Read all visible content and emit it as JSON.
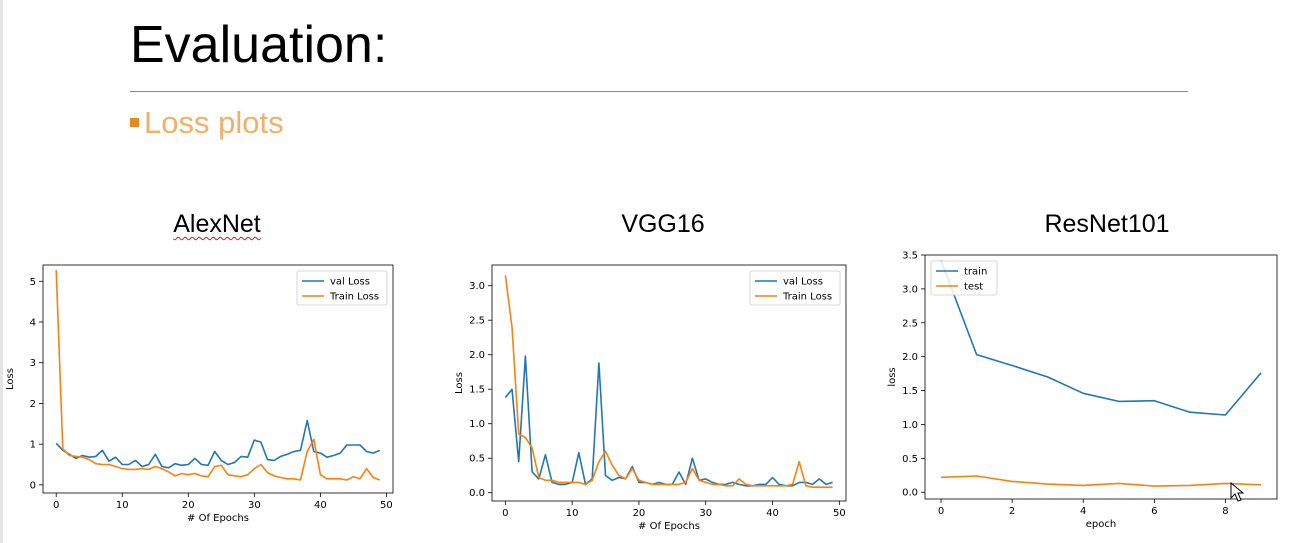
{
  "slide": {
    "title": "Evaluation:",
    "subtitle": "Loss plots",
    "bullet_color": "#e8891f",
    "subtitle_color": "#f0b06a"
  },
  "chart_titles": [
    "AlexNet",
    "VGG16",
    "ResNet101"
  ],
  "chart_data": [
    {
      "type": "line",
      "xlabel": "# Of Epochs",
      "ylabel": "Loss",
      "xlim": [
        -2,
        51
      ],
      "ylim": [
        -0.2,
        5.4
      ],
      "xticks": [
        0,
        10,
        20,
        30,
        40,
        50
      ],
      "yticks": [
        0,
        1,
        2,
        3,
        4,
        5
      ],
      "legend_position": "top-right",
      "series": [
        {
          "name": "val Loss",
          "color": "#1f77b4",
          "values": [
            1.02,
            0.85,
            0.75,
            0.65,
            0.72,
            0.68,
            0.7,
            0.85,
            0.58,
            0.68,
            0.5,
            0.5,
            0.6,
            0.45,
            0.5,
            0.75,
            0.45,
            0.42,
            0.52,
            0.48,
            0.5,
            0.65,
            0.5,
            0.48,
            0.82,
            0.6,
            0.5,
            0.55,
            0.7,
            0.68,
            1.1,
            1.05,
            0.62,
            0.6,
            0.7,
            0.75,
            0.82,
            0.85,
            1.58,
            0.82,
            0.78,
            0.68,
            0.72,
            0.78,
            0.98,
            0.98,
            0.98,
            0.82,
            0.78,
            0.85
          ]
        },
        {
          "name": "Train Loss",
          "color": "#ff7f0e",
          "values": [
            5.28,
            0.88,
            0.72,
            0.7,
            0.68,
            0.62,
            0.52,
            0.5,
            0.5,
            0.45,
            0.4,
            0.38,
            0.38,
            0.4,
            0.38,
            0.45,
            0.4,
            0.32,
            0.22,
            0.28,
            0.25,
            0.28,
            0.22,
            0.2,
            0.45,
            0.48,
            0.25,
            0.22,
            0.2,
            0.25,
            0.4,
            0.5,
            0.3,
            0.22,
            0.18,
            0.15,
            0.15,
            0.12,
            0.82,
            1.12,
            0.25,
            0.15,
            0.15,
            0.15,
            0.12,
            0.2,
            0.15,
            0.4,
            0.18,
            0.12
          ]
        }
      ]
    },
    {
      "type": "line",
      "xlabel": "# Of Epochs",
      "ylabel": "Loss",
      "xlim": [
        -2,
        51
      ],
      "ylim": [
        -0.12,
        3.3
      ],
      "xticks": [
        0,
        10,
        20,
        30,
        40,
        50
      ],
      "yticks": [
        0.0,
        0.5,
        1.0,
        1.5,
        2.0,
        2.5,
        3.0
      ],
      "legend_position": "top-right",
      "series": [
        {
          "name": "val Loss",
          "color": "#1f77b4",
          "values": [
            1.38,
            1.5,
            0.45,
            1.98,
            0.3,
            0.2,
            0.55,
            0.15,
            0.12,
            0.12,
            0.15,
            0.58,
            0.12,
            0.2,
            1.88,
            0.25,
            0.18,
            0.22,
            0.2,
            0.38,
            0.15,
            0.15,
            0.12,
            0.15,
            0.12,
            0.12,
            0.3,
            0.12,
            0.5,
            0.18,
            0.2,
            0.15,
            0.12,
            0.12,
            0.15,
            0.12,
            0.1,
            0.1,
            0.12,
            0.12,
            0.22,
            0.12,
            0.1,
            0.1,
            0.15,
            0.15,
            0.12,
            0.2,
            0.12,
            0.15
          ]
        },
        {
          "name": "Train Loss",
          "color": "#ff7f0e",
          "values": [
            3.15,
            2.4,
            0.85,
            0.8,
            0.65,
            0.22,
            0.18,
            0.18,
            0.15,
            0.15,
            0.15,
            0.15,
            0.12,
            0.18,
            0.45,
            0.6,
            0.4,
            0.25,
            0.2,
            0.35,
            0.18,
            0.15,
            0.12,
            0.12,
            0.12,
            0.12,
            0.12,
            0.15,
            0.35,
            0.18,
            0.15,
            0.12,
            0.12,
            0.1,
            0.1,
            0.2,
            0.12,
            0.1,
            0.1,
            0.1,
            0.1,
            0.1,
            0.1,
            0.12,
            0.45,
            0.1,
            0.08,
            0.08,
            0.08,
            0.08
          ]
        }
      ]
    },
    {
      "type": "line",
      "xlabel": "epoch",
      "ylabel": "loss",
      "xlim": [
        -0.45,
        9.45
      ],
      "ylim": [
        -0.1,
        3.5
      ],
      "xticks": [
        0,
        2,
        4,
        6,
        8
      ],
      "yticks": [
        0.0,
        0.5,
        1.0,
        1.5,
        2.0,
        2.5,
        3.0,
        3.5
      ],
      "legend_position": "top-left",
      "series": [
        {
          "name": "train",
          "color": "#1f77b4",
          "values": [
            3.42,
            2.03,
            1.87,
            1.7,
            1.46,
            1.34,
            1.35,
            1.18,
            1.14,
            1.76
          ]
        },
        {
          "name": "test",
          "color": "#ff7f0e",
          "values": [
            0.22,
            0.24,
            0.16,
            0.12,
            0.1,
            0.13,
            0.09,
            0.1,
            0.13,
            0.11
          ]
        }
      ]
    }
  ]
}
